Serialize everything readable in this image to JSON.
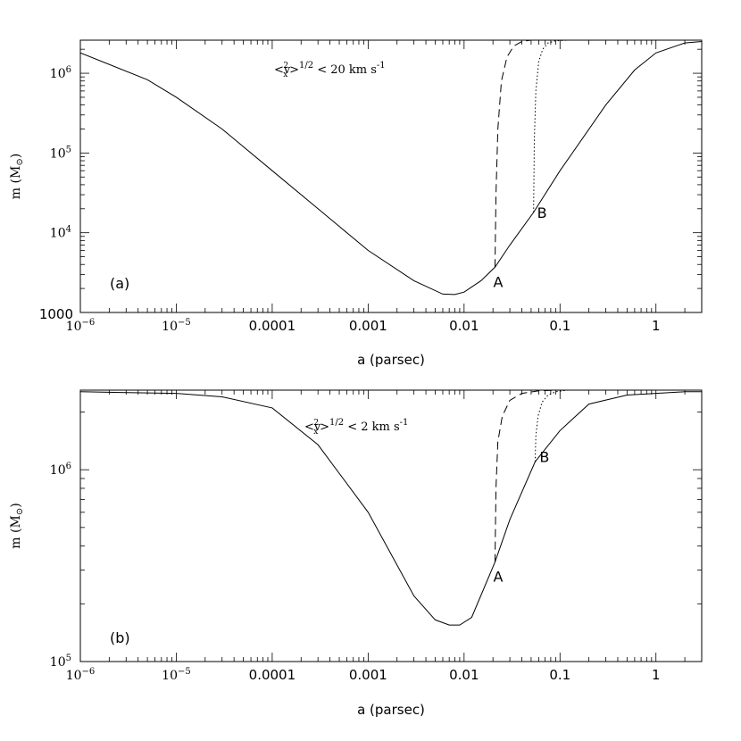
{
  "chart_data": [
    {
      "type": "line",
      "panel_label": "(a)",
      "annotation": "<v_x^2>^1/2 < 20 km s^-1",
      "annotation_parts": {
        "open": "<v",
        "sub": "x",
        "sup": "2",
        "close": ">",
        "exp": "1/2",
        "rest": " < 20 km s",
        "unit_exp": "-1"
      },
      "xlabel": "a (parsec)",
      "ylabel": "m (M_⊙)",
      "ylabel_parts": {
        "main": "m (M",
        "sub": "⊙",
        "close": ")"
      },
      "xscale": "log",
      "yscale": "log",
      "xlim": [
        1e-06,
        3
      ],
      "ylim": [
        1000,
        2600000.0
      ],
      "xticks": [
        {
          "value": 1e-06,
          "label": "10",
          "exp": "−6"
        },
        {
          "value": 1e-05,
          "label": "10",
          "exp": "−5"
        },
        {
          "value": 0.0001,
          "label": "0.0001"
        },
        {
          "value": 0.001,
          "label": "0.001"
        },
        {
          "value": 0.01,
          "label": "0.01"
        },
        {
          "value": 0.1,
          "label": "0.1"
        },
        {
          "value": 1,
          "label": "1"
        }
      ],
      "yticks": [
        {
          "value": 1000,
          "label": "1000"
        },
        {
          "value": 10000.0,
          "label": "10",
          "exp": "4"
        },
        {
          "value": 100000.0,
          "label": "10",
          "exp": "5"
        },
        {
          "value": 1000000.0,
          "label": "10",
          "exp": "6"
        }
      ],
      "series": [
        {
          "style": "solid",
          "x": [
            1e-06,
            5e-06,
            1e-05,
            3e-05,
            0.0001,
            0.0003,
            0.001,
            0.003,
            0.006,
            0.008,
            0.01,
            0.015,
            0.021,
            0.03,
            0.053,
            0.1,
            0.3,
            0.6,
            1,
            2,
            3
          ],
          "y": [
            1800000.0,
            830000.0,
            500000.0,
            200000.0,
            60000.0,
            20000.0,
            6000.0,
            2500.0,
            1700.0,
            1680.0,
            1800.0,
            2500.0,
            3700.0,
            7000.0,
            18000.0,
            60000.0,
            400000.0,
            1100000.0,
            1800000.0,
            2400000.0,
            2500000.0
          ]
        },
        {
          "style": "dashed",
          "x": [
            0.021,
            0.0215,
            0.0225,
            0.0245,
            0.028,
            0.033,
            0.04,
            0.05,
            0.1,
            0.3,
            1,
            3
          ],
          "y": [
            3700.0,
            30000.0,
            200000.0,
            800000.0,
            1600000.0,
            2200000.0,
            2500000.0,
            2600000.0,
            2600000.0,
            2600000.0,
            2600000.0,
            2600000.0
          ]
        },
        {
          "style": "dotted",
          "x": [
            0.053,
            0.054,
            0.056,
            0.06,
            0.066,
            0.075,
            0.09,
            0.12,
            0.3,
            1,
            3
          ],
          "y": [
            18000.0,
            150000.0,
            600000.0,
            1400000.0,
            2000000.0,
            2400000.0,
            2550000.0,
            2600000.0,
            2600000.0,
            2600000.0,
            2600000.0
          ]
        }
      ],
      "points": [
        {
          "label": "A",
          "x": 0.021,
          "y": 3700.0
        },
        {
          "label": "B",
          "x": 0.053,
          "y": 18000.0
        }
      ]
    },
    {
      "type": "line",
      "panel_label": "(b)",
      "annotation": "<v_x^2>^1/2 < 2 km s^-1",
      "annotation_parts": {
        "open": "<v",
        "sub": "x",
        "sup": "2",
        "close": ">",
        "exp": "1/2",
        "rest": " < 2 km s",
        "unit_exp": "-1"
      },
      "xlabel": "a (parsec)",
      "ylabel": "m (M_⊙)",
      "ylabel_parts": {
        "main": "m (M",
        "sub": "⊙",
        "close": ")"
      },
      "xscale": "log",
      "yscale": "log",
      "xlim": [
        1e-06,
        3
      ],
      "ylim": [
        100000.0,
        2600000.0
      ],
      "xticks": [
        {
          "value": 1e-06,
          "label": "10",
          "exp": "−6"
        },
        {
          "value": 1e-05,
          "label": "10",
          "exp": "−5"
        },
        {
          "value": 0.0001,
          "label": "0.0001"
        },
        {
          "value": 0.001,
          "label": "0.001"
        },
        {
          "value": 0.01,
          "label": "0.01"
        },
        {
          "value": 0.1,
          "label": "0.1"
        },
        {
          "value": 1,
          "label": "1"
        }
      ],
      "yticks": [
        {
          "value": 100000.0,
          "label": "10",
          "exp": "5"
        },
        {
          "value": 1000000.0,
          "label": "10",
          "exp": "6"
        }
      ],
      "series": [
        {
          "style": "solid",
          "x": [
            1e-06,
            1e-05,
            3e-05,
            0.0001,
            0.0003,
            0.001,
            0.003,
            0.005,
            0.007,
            0.009,
            0.012,
            0.021,
            0.03,
            0.055,
            0.1,
            0.2,
            0.5,
            1,
            2,
            3
          ],
          "y": [
            2550000.0,
            2500000.0,
            2400000.0,
            2100000.0,
            1350000.0,
            600000.0,
            220000.0,
            165000.0,
            155000.0,
            155000.0,
            170000.0,
            330000.0,
            550000.0,
            1100000.0,
            1600000.0,
            2200000.0,
            2450000.0,
            2500000.0,
            2550000.0,
            2550000.0
          ]
        },
        {
          "style": "dashed",
          "x": [
            0.021,
            0.0215,
            0.0225,
            0.025,
            0.03,
            0.04,
            0.06,
            0.1,
            0.3,
            1,
            3
          ],
          "y": [
            330000.0,
            800000.0,
            1400000.0,
            1900000.0,
            2300000.0,
            2500000.0,
            2580000.0,
            2600000.0,
            2600000.0,
            2600000.0,
            2600000.0
          ]
        },
        {
          "style": "dotted",
          "x": [
            0.055,
            0.056,
            0.059,
            0.065,
            0.075,
            0.09,
            0.12,
            0.2,
            0.5,
            1,
            3
          ],
          "y": [
            1100000.0,
            1500000.0,
            1900000.0,
            2250000.0,
            2450000.0,
            2550000.0,
            2600000.0,
            2600000.0,
            2600000.0,
            2600000.0,
            2600000.0
          ]
        }
      ],
      "points": [
        {
          "label": "A",
          "x": 0.021,
          "y": 330000.0
        },
        {
          "label": "B",
          "x": 0.055,
          "y": 1100000.0
        }
      ]
    }
  ]
}
